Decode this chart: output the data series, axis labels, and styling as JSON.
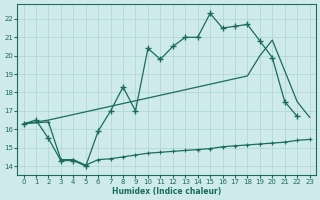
{
  "xlabel": "Humidex (Indice chaleur)",
  "bg_color": "#ceeaea",
  "line_color": "#1a6b60",
  "grid_color": "#aed4d4",
  "xlim": [
    -0.5,
    23.5
  ],
  "ylim": [
    13.5,
    22.8
  ],
  "yticks": [
    14,
    15,
    16,
    17,
    18,
    19,
    20,
    21,
    22
  ],
  "xticks": [
    0,
    1,
    2,
    3,
    4,
    5,
    6,
    7,
    8,
    9,
    10,
    11,
    12,
    13,
    14,
    15,
    16,
    17,
    18,
    19,
    20,
    21,
    22,
    23
  ],
  "line1_x": [
    0,
    1,
    2,
    3,
    4,
    5,
    6,
    7,
    8,
    9,
    10,
    11,
    12,
    13,
    14,
    15,
    16,
    17,
    18,
    19,
    20,
    21,
    22
  ],
  "line1_y": [
    16.3,
    16.5,
    15.5,
    14.3,
    14.3,
    14.0,
    15.9,
    17.0,
    18.3,
    17.0,
    20.4,
    19.8,
    20.5,
    21.0,
    21.0,
    22.3,
    21.5,
    21.6,
    21.7,
    20.8,
    19.9,
    17.5,
    16.7
  ],
  "line2_x": [
    0,
    2,
    6,
    7,
    8,
    9,
    10,
    11,
    12,
    13,
    14,
    15,
    16,
    17,
    18,
    19,
    20,
    22,
    23
  ],
  "line2_y": [
    16.3,
    16.5,
    17.1,
    17.25,
    17.4,
    17.55,
    17.7,
    17.85,
    18.0,
    18.15,
    18.3,
    18.45,
    18.6,
    18.75,
    18.9,
    20.0,
    20.85,
    17.5,
    16.65
  ],
  "line3_x": [
    0,
    2,
    3,
    4,
    5,
    6,
    7,
    8,
    9,
    10,
    11,
    12,
    13,
    14,
    15,
    16,
    17,
    18,
    19,
    20,
    21,
    22,
    23
  ],
  "line3_y": [
    16.3,
    16.4,
    14.35,
    14.35,
    14.05,
    14.35,
    14.4,
    14.5,
    14.6,
    14.7,
    14.75,
    14.8,
    14.85,
    14.9,
    14.95,
    15.05,
    15.1,
    15.15,
    15.2,
    15.25,
    15.3,
    15.4,
    15.45
  ]
}
